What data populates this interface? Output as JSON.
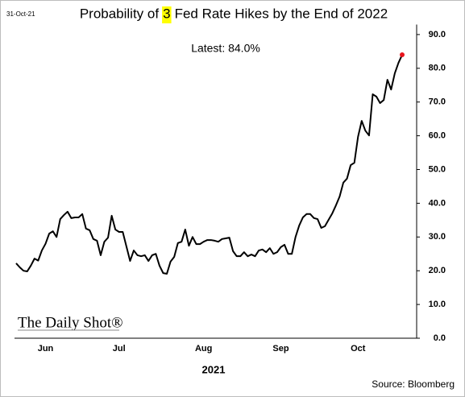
{
  "chart_data": {
    "type": "line",
    "date_stamp": "31-Oct-21",
    "title_parts": [
      "Probability of",
      "3",
      "Fed Rate Hikes by the End of 2022"
    ],
    "annotation": "Latest:  84.0%",
    "xlabel": "2021",
    "source": "Source: Bloomberg",
    "logo": "The Daily Shot®",
    "categories": [
      null,
      null,
      null,
      null,
      null,
      null,
      null,
      null,
      "Jun",
      null,
      null,
      null,
      null,
      null,
      null,
      null,
      null,
      null,
      null,
      null,
      null,
      null,
      null,
      null,
      null,
      null,
      null,
      null,
      "Jul",
      null,
      null,
      null,
      null,
      null,
      null,
      null,
      null,
      null,
      null,
      null,
      null,
      null,
      null,
      null,
      null,
      null,
      null,
      null,
      null,
      null,
      null,
      "Aug",
      null,
      null,
      null,
      null,
      null,
      null,
      null,
      null,
      null,
      null,
      null,
      null,
      null,
      null,
      null,
      null,
      null,
      null,
      null,
      null,
      "Sep",
      null,
      null,
      null,
      null,
      null,
      null,
      null,
      null,
      null,
      null,
      null,
      null,
      null,
      null,
      null,
      null,
      null,
      null,
      null,
      null,
      "Oct",
      null,
      null,
      null,
      null,
      null,
      null,
      null,
      null,
      null,
      null,
      null,
      null
    ],
    "series": [
      {
        "color": "#000000",
        "values": [
          22.2,
          21,
          20,
          19.8,
          21.5,
          23.6,
          23,
          26,
          28,
          31,
          31.7,
          30,
          35.3,
          36.5,
          37.5,
          35.6,
          35.8,
          35.8,
          36.8,
          32.5,
          32,
          29.4,
          28.9,
          24.6,
          28.6,
          29.8,
          36.3,
          32.2,
          31.5,
          31.5,
          27.2,
          22.9,
          26,
          24.6,
          24.3,
          24.6,
          22.9,
          24.6,
          25,
          21.5,
          19.3,
          19.1,
          22.7,
          24.1,
          28.2,
          28.6,
          32.2,
          27.4,
          30,
          27.9,
          27.9,
          28.6,
          29.1,
          29.1,
          28.9,
          28.6,
          29.4,
          29.6,
          29.8,
          25.8,
          24.3,
          24.3,
          25.5,
          24.3,
          24.8,
          24.3,
          26,
          26.3,
          25.5,
          26.7,
          25,
          25.5,
          27,
          27.7,
          25,
          25,
          30,
          33.4,
          35.8,
          36.8,
          36.8,
          35.6,
          35.3,
          32.7,
          33.2,
          35.1,
          37,
          39.4,
          42,
          46.1,
          47.3,
          51.3,
          52,
          59.7,
          64.4,
          61.5,
          60.1,
          72.3,
          71.6,
          69.7,
          70.6,
          76.6,
          73.7,
          78.5,
          81.6,
          84.0
        ]
      }
    ],
    "last_point_color": "#e8141c",
    "highlight_color": "#ffff00",
    "ylim": [
      0,
      92
    ],
    "yticks": [
      {
        "value": 0,
        "label": "0.0"
      },
      {
        "value": 10,
        "label": "10.0"
      },
      {
        "value": 20,
        "label": "20.0"
      },
      {
        "value": 30,
        "label": "30.0"
      },
      {
        "value": 40,
        "label": "40.0"
      },
      {
        "value": 50,
        "label": "50.0"
      },
      {
        "value": 60,
        "label": "60.0"
      },
      {
        "value": 70,
        "label": "70.0"
      },
      {
        "value": 80,
        "label": "80.0"
      },
      {
        "value": 90,
        "label": "90.0"
      }
    ],
    "grid": false
  }
}
